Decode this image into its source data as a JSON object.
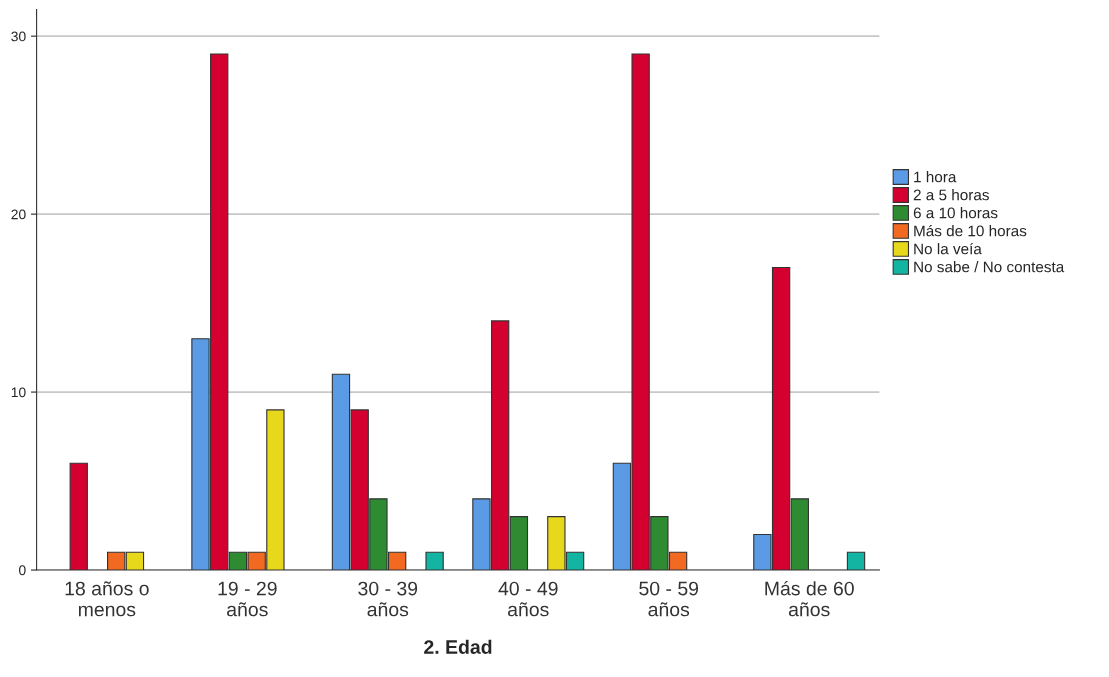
{
  "chart_data": {
    "type": "bar",
    "xlabel": "2. Edad",
    "categories": [
      "18 años o\nmenos",
      "19 - 29\naños",
      "30 - 39\naños",
      "40 - 49\naños",
      "50 - 59\naños",
      "Más de 60\naños"
    ],
    "series": [
      {
        "name": "1 hora",
        "color": "#5b9be6",
        "values": [
          null,
          13,
          11,
          4,
          6,
          2
        ]
      },
      {
        "name": "2 a 5 horas",
        "color": "#d4002f",
        "values": [
          6,
          29,
          9,
          14,
          29,
          17
        ]
      },
      {
        "name": "6 a 10 horas",
        "color": "#2e8b32",
        "values": [
          null,
          1,
          4,
          3,
          3,
          4
        ]
      },
      {
        "name": "Más de 10 horas",
        "color": "#f26a22",
        "values": [
          1,
          1,
          1,
          null,
          1,
          null
        ]
      },
      {
        "name": "No la veía",
        "color": "#e8d81c",
        "values": [
          1,
          9,
          null,
          3,
          null,
          null
        ]
      },
      {
        "name": "No sabe / No contesta",
        "color": "#14b4a2",
        "values": [
          null,
          null,
          1,
          1,
          null,
          1
        ]
      }
    ],
    "ylim": [
      0,
      31.5
    ],
    "yticks": [
      0,
      10,
      20,
      30
    ],
    "grid": "y",
    "legend": "right"
  }
}
